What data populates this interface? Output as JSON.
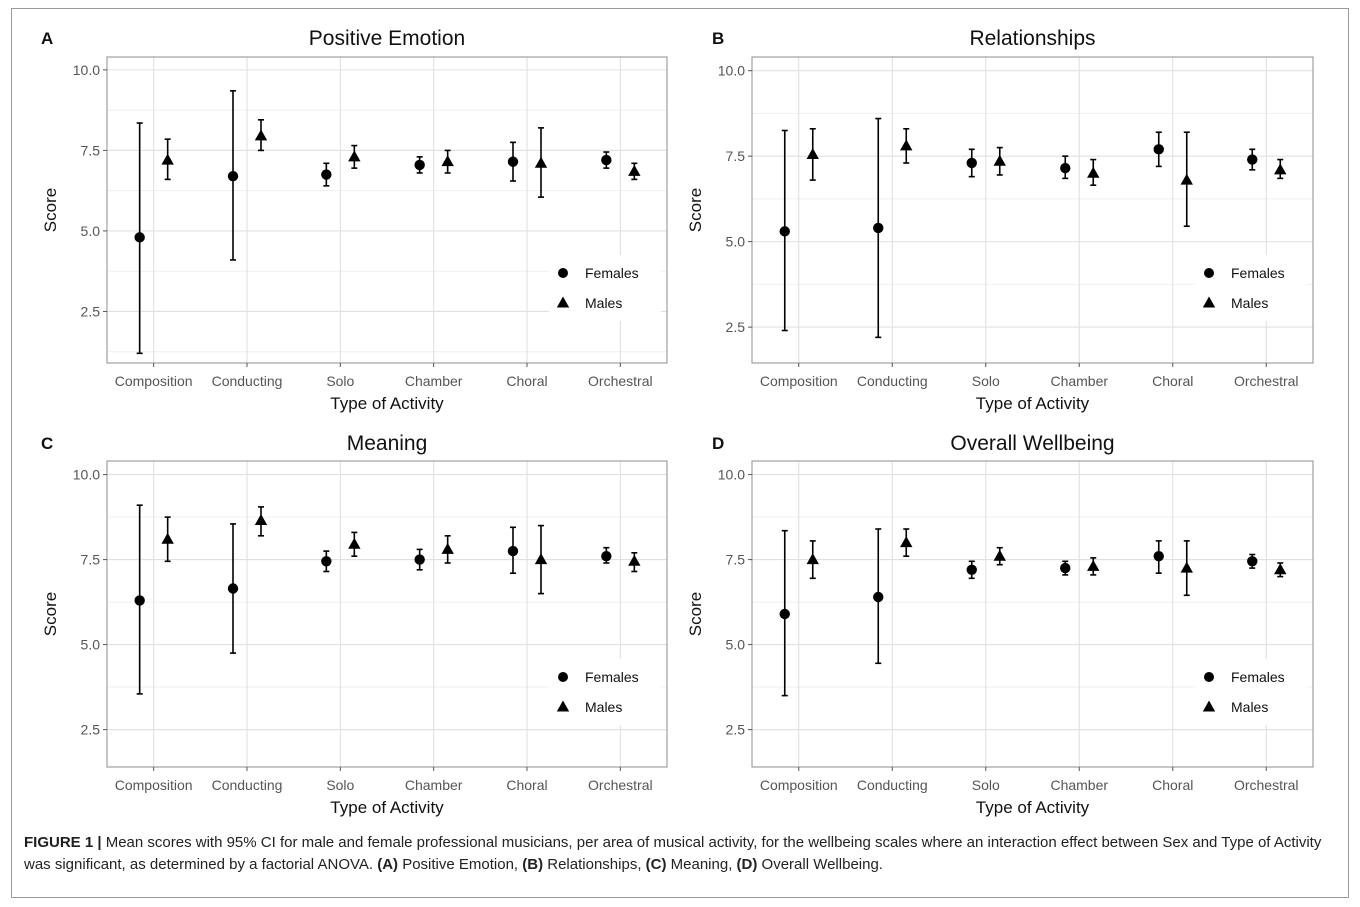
{
  "figure": {
    "categories": [
      "Composition",
      "Conducting",
      "Solo",
      "Chamber",
      "Choral",
      "Orchestral"
    ],
    "xlabel": "Type of Activity",
    "ylabel": "Score",
    "yticks": [
      "2.5",
      "5.0",
      "7.5",
      "10.0"
    ],
    "legend": [
      "Females",
      "Males"
    ]
  },
  "chart_data": [
    {
      "type": "scatter",
      "panel": "A",
      "title": "Positive Emotion",
      "categories": [
        "Composition",
        "Conducting",
        "Solo",
        "Chamber",
        "Choral",
        "Orchestral"
      ],
      "xlabel": "Type of Activity",
      "ylabel": "Score",
      "ylim": [
        0.9,
        10.4
      ],
      "yticks": [
        2.5,
        5.0,
        7.5,
        10.0
      ],
      "grid": true,
      "legend_position": "bottom-right",
      "series": [
        {
          "name": "Females",
          "marker": "circle",
          "values": [
            4.8,
            6.7,
            6.75,
            7.05,
            7.15,
            7.2
          ],
          "ci_low": [
            1.2,
            4.1,
            6.4,
            6.8,
            6.55,
            6.95
          ],
          "ci_high": [
            8.35,
            9.35,
            7.1,
            7.3,
            7.75,
            7.45
          ]
        },
        {
          "name": "Males",
          "marker": "triangle",
          "values": [
            7.2,
            7.95,
            7.3,
            7.15,
            7.1,
            6.85
          ],
          "ci_low": [
            6.6,
            7.5,
            6.95,
            6.8,
            6.05,
            6.6
          ],
          "ci_high": [
            7.85,
            8.45,
            7.65,
            7.5,
            8.2,
            7.1
          ]
        }
      ]
    },
    {
      "type": "scatter",
      "panel": "B",
      "title": "Relationships",
      "categories": [
        "Composition",
        "Conducting",
        "Solo",
        "Chamber",
        "Choral",
        "Orchestral"
      ],
      "xlabel": "Type of Activity",
      "ylabel": "Score",
      "ylim": [
        1.45,
        10.4
      ],
      "yticks": [
        2.5,
        5.0,
        7.5,
        10.0
      ],
      "grid": true,
      "legend_position": "bottom-right",
      "series": [
        {
          "name": "Females",
          "marker": "circle",
          "values": [
            5.3,
            5.4,
            7.3,
            7.15,
            7.7,
            7.4
          ],
          "ci_low": [
            2.4,
            2.2,
            6.9,
            6.85,
            7.2,
            7.1
          ],
          "ci_high": [
            8.25,
            8.6,
            7.7,
            7.5,
            8.2,
            7.7
          ]
        },
        {
          "name": "Males",
          "marker": "triangle",
          "values": [
            7.55,
            7.8,
            7.35,
            7.0,
            6.8,
            7.1
          ],
          "ci_low": [
            6.8,
            7.3,
            6.95,
            6.65,
            5.45,
            6.85
          ],
          "ci_high": [
            8.3,
            8.3,
            7.75,
            7.4,
            8.2,
            7.4
          ]
        }
      ]
    },
    {
      "type": "scatter",
      "panel": "C",
      "title": "Meaning",
      "categories": [
        "Composition",
        "Conducting",
        "Solo",
        "Chamber",
        "Choral",
        "Orchestral"
      ],
      "xlabel": "Type of Activity",
      "ylabel": "Score",
      "ylim": [
        1.4,
        10.4
      ],
      "yticks": [
        2.5,
        5.0,
        7.5,
        10.0
      ],
      "grid": true,
      "legend_position": "bottom-right",
      "series": [
        {
          "name": "Females",
          "marker": "circle",
          "values": [
            6.3,
            6.65,
            7.45,
            7.5,
            7.75,
            7.6
          ],
          "ci_low": [
            3.55,
            4.75,
            7.15,
            7.2,
            7.1,
            7.4
          ],
          "ci_high": [
            9.1,
            8.55,
            7.75,
            7.8,
            8.45,
            7.85
          ]
        },
        {
          "name": "Males",
          "marker": "triangle",
          "values": [
            8.1,
            8.65,
            7.95,
            7.8,
            7.5,
            7.45
          ],
          "ci_low": [
            7.45,
            8.2,
            7.6,
            7.4,
            6.5,
            7.15
          ],
          "ci_high": [
            8.75,
            9.05,
            8.3,
            8.2,
            8.5,
            7.7
          ]
        }
      ]
    },
    {
      "type": "scatter",
      "panel": "D",
      "title": "Overall Wellbeing",
      "categories": [
        "Composition",
        "Conducting",
        "Solo",
        "Chamber",
        "Choral",
        "Orchestral"
      ],
      "xlabel": "Type of Activity",
      "ylabel": "Score",
      "ylim": [
        1.4,
        10.4
      ],
      "yticks": [
        2.5,
        5.0,
        7.5,
        10.0
      ],
      "grid": true,
      "legend_position": "bottom-right",
      "series": [
        {
          "name": "Females",
          "marker": "circle",
          "values": [
            5.9,
            6.4,
            7.2,
            7.25,
            7.6,
            7.45
          ],
          "ci_low": [
            3.5,
            4.45,
            6.95,
            7.05,
            7.1,
            7.25
          ],
          "ci_high": [
            8.35,
            8.4,
            7.45,
            7.45,
            8.05,
            7.65
          ]
        },
        {
          "name": "Males",
          "marker": "triangle",
          "values": [
            7.5,
            8.0,
            7.6,
            7.3,
            7.25,
            7.2
          ],
          "ci_low": [
            6.95,
            7.6,
            7.35,
            7.05,
            6.45,
            7.0
          ],
          "ci_high": [
            8.05,
            8.4,
            7.85,
            7.55,
            8.05,
            7.4
          ]
        }
      ]
    }
  ],
  "caption": {
    "figure_label": "FIGURE 1 |",
    "text_1": " Mean scores with 95% CI for male and female professional musicians, per area of musical activity, for the wellbeing scales where an interaction effect between Sex and Type of Activity was significant, as determined by a factorial ANOVA. ",
    "ref_a": "(A)",
    "text_a": " Positive Emotion, ",
    "ref_b": "(B)",
    "text_b": " Relationships, ",
    "ref_c": "(C)",
    "text_c": " Meaning, ",
    "ref_d": "(D)",
    "text_d": " Overall Wellbeing."
  }
}
